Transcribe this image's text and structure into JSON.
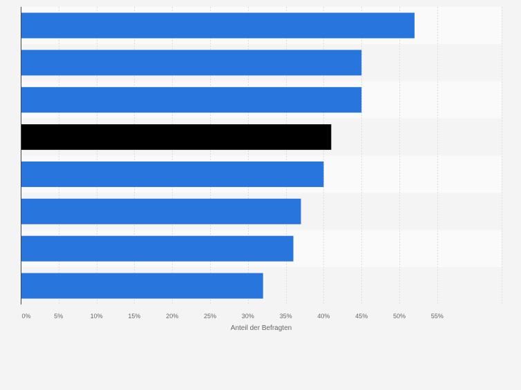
{
  "chart_data": {
    "type": "bar",
    "orientation": "horizontal",
    "categories": [
      "",
      "",
      "",
      "",
      "",
      "",
      "",
      ""
    ],
    "values": [
      52,
      45,
      45,
      41,
      40,
      37,
      36,
      32
    ],
    "highlight_index": 3,
    "xlabel": "Anteil der Befragten",
    "xlim": [
      0,
      60
    ],
    "xticks": [
      0,
      5,
      10,
      15,
      20,
      25,
      30,
      35,
      40,
      45,
      50,
      55
    ],
    "xtick_labels": [
      "0%",
      "5%",
      "10%",
      "15%",
      "20%",
      "25%",
      "30%",
      "35%",
      "40%",
      "45%",
      "50%",
      "55%"
    ],
    "grid": true,
    "colors": {
      "bar": "#2876dd",
      "highlight": "#000000",
      "band_light": "#fafafa",
      "band_dark": "#f4f4f4",
      "grid": "#dcdcdc",
      "axis": "#444444",
      "text": "#666666"
    }
  }
}
